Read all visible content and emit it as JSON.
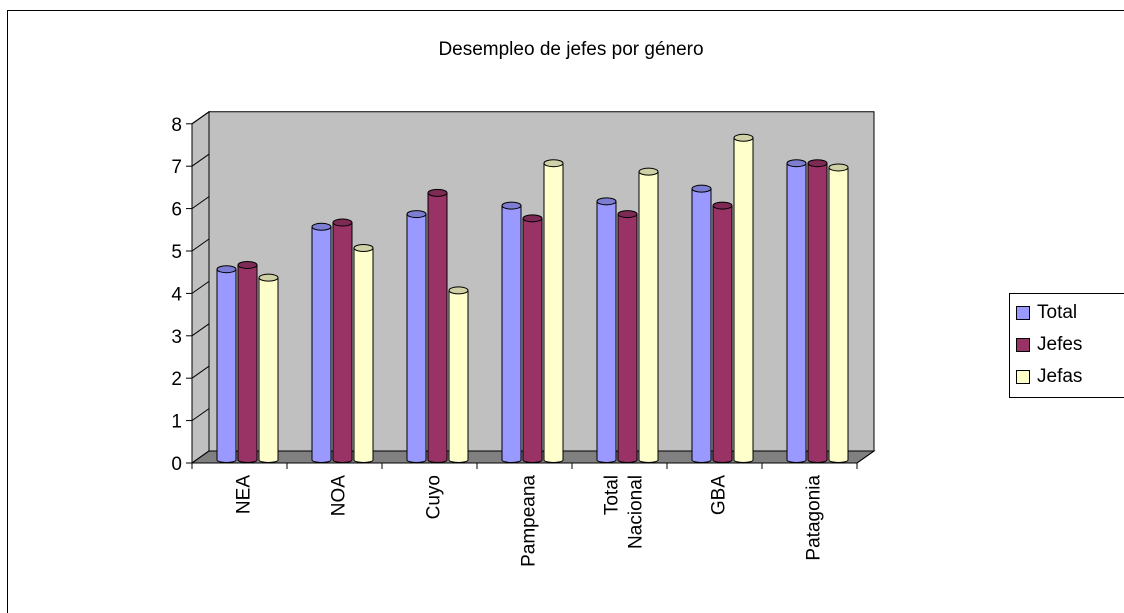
{
  "chart_data": {
    "type": "bar",
    "title": "Desempleo de jefes por género",
    "categories": [
      [
        "NEA"
      ],
      [
        "NOA"
      ],
      [
        "Cuyo"
      ],
      [
        "Pampeana"
      ],
      [
        "Total",
        "Nacional"
      ],
      [
        "GBA"
      ],
      [
        "Patagonia"
      ]
    ],
    "series": [
      {
        "name": "Total",
        "color": "#9999ff",
        "values": [
          4.5,
          5.5,
          5.8,
          6.0,
          6.1,
          6.4,
          7.0
        ]
      },
      {
        "name": "Jefes",
        "color": "#993366",
        "values": [
          4.6,
          5.6,
          6.3,
          5.7,
          5.8,
          6.0,
          7.0
        ]
      },
      {
        "name": "Jefas",
        "color": "#ffffcc",
        "values": [
          4.3,
          5.0,
          4.0,
          7.0,
          6.8,
          7.6,
          6.9
        ]
      }
    ],
    "ylim": [
      0,
      8
    ],
    "yticks": [
      0,
      1,
      2,
      3,
      4,
      5,
      6,
      7,
      8
    ],
    "xlabel": "",
    "ylabel": "",
    "grid": false,
    "legend": "right",
    "wall_color": "#c0c0c0",
    "floor_color": "#808080"
  }
}
